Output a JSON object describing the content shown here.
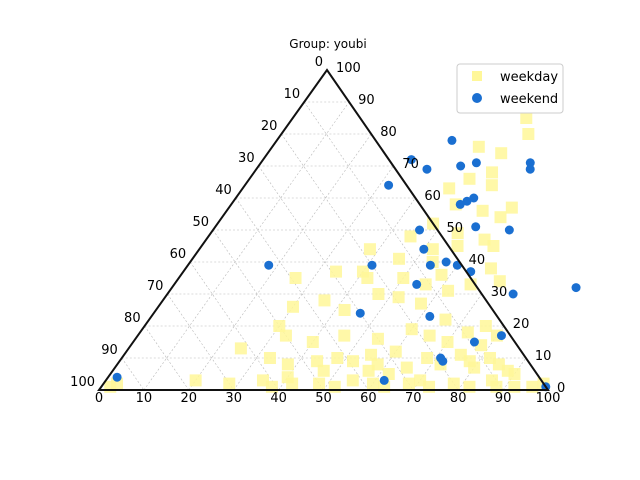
{
  "chart_data": {
    "type": "scatter",
    "subtype": "ternary",
    "title": "Group: youbi",
    "legend_position": "top-right",
    "grid": true,
    "axes": {
      "bottom": {
        "min": 0,
        "max": 100,
        "ticks": [
          "0",
          "10",
          "20",
          "30",
          "40",
          "50",
          "60",
          "70",
          "80",
          "90",
          "100"
        ]
      },
      "right": {
        "min": 0,
        "max": 100,
        "ticks": [
          "0",
          "10",
          "20",
          "30",
          "40",
          "50",
          "60",
          "70",
          "80",
          "90",
          "100"
        ]
      },
      "left": {
        "min": 0,
        "max": 100,
        "ticks": [
          "0",
          "10",
          "20",
          "30",
          "40",
          "50",
          "60",
          "70",
          "80",
          "90",
          "100"
        ]
      }
    },
    "point_coordinate_note": "each point: b = bottom-axis value, r = right-axis value",
    "series": [
      {
        "name": "weekday",
        "marker": "square",
        "color": "#fff799",
        "points": [
          {
            "b": 2,
            "r": 1
          },
          {
            "b": 3,
            "r": 2
          },
          {
            "b": 20,
            "r": 3
          },
          {
            "b": 28,
            "r": 2
          },
          {
            "b": 35,
            "r": 3
          },
          {
            "b": 38,
            "r": 1
          },
          {
            "b": 42,
            "r": 2
          },
          {
            "b": 40,
            "r": 4
          },
          {
            "b": 48,
            "r": 2
          },
          {
            "b": 52,
            "r": 1
          },
          {
            "b": 55,
            "r": 3
          },
          {
            "b": 60,
            "r": 2
          },
          {
            "b": 63,
            "r": 1
          },
          {
            "b": 68,
            "r": 2
          },
          {
            "b": 70,
            "r": 3
          },
          {
            "b": 73,
            "r": 1
          },
          {
            "b": 78,
            "r": 2
          },
          {
            "b": 82,
            "r": 1
          },
          {
            "b": 86,
            "r": 3
          },
          {
            "b": 88,
            "r": 1
          },
          {
            "b": 92,
            "r": 1
          },
          {
            "b": 96,
            "r": 1
          },
          {
            "b": 98,
            "r": 2
          },
          {
            "b": 25,
            "r": 13
          },
          {
            "b": 33,
            "r": 10
          },
          {
            "b": 38,
            "r": 8
          },
          {
            "b": 44,
            "r": 9
          },
          {
            "b": 48,
            "r": 10
          },
          {
            "b": 52,
            "r": 9
          },
          {
            "b": 55,
            "r": 11
          },
          {
            "b": 58,
            "r": 8
          },
          {
            "b": 60,
            "r": 12
          },
          {
            "b": 65,
            "r": 7
          },
          {
            "b": 68,
            "r": 10
          },
          {
            "b": 72,
            "r": 8
          },
          {
            "b": 75,
            "r": 11
          },
          {
            "b": 78,
            "r": 9
          },
          {
            "b": 80,
            "r": 7
          },
          {
            "b": 82,
            "r": 10
          },
          {
            "b": 85,
            "r": 8
          },
          {
            "b": 88,
            "r": 6
          },
          {
            "b": 90,
            "r": 5
          },
          {
            "b": 62,
            "r": 5
          },
          {
            "b": 57,
            "r": 6
          },
          {
            "b": 47,
            "r": 6
          },
          {
            "b": 30,
            "r": 20
          },
          {
            "b": 33,
            "r": 17
          },
          {
            "b": 40,
            "r": 15
          },
          {
            "b": 46,
            "r": 17
          },
          {
            "b": 54,
            "r": 16
          },
          {
            "b": 60,
            "r": 19
          },
          {
            "b": 65,
            "r": 17
          },
          {
            "b": 70,
            "r": 15
          },
          {
            "b": 73,
            "r": 18
          },
          {
            "b": 78,
            "r": 14
          },
          {
            "b": 80,
            "r": 17
          },
          {
            "b": 76,
            "r": 20
          },
          {
            "b": 66,
            "r": 22
          },
          {
            "b": 30,
            "r": 26
          },
          {
            "b": 36,
            "r": 28
          },
          {
            "b": 42,
            "r": 25
          },
          {
            "b": 47,
            "r": 30
          },
          {
            "b": 52,
            "r": 29
          },
          {
            "b": 56,
            "r": 33
          },
          {
            "b": 58,
            "r": 36
          },
          {
            "b": 62,
            "r": 31
          },
          {
            "b": 66,
            "r": 33
          },
          {
            "b": 68,
            "r": 38
          },
          {
            "b": 72,
            "r": 34
          },
          {
            "b": 58,
            "r": 27
          },
          {
            "b": 50,
            "r": 35
          },
          {
            "b": 40,
            "r": 37
          },
          {
            "b": 42,
            "r": 35
          },
          {
            "b": 46,
            "r": 41
          },
          {
            "b": 52,
            "r": 44
          },
          {
            "b": 57,
            "r": 45
          },
          {
            "b": 62,
            "r": 47
          },
          {
            "b": 65,
            "r": 45
          },
          {
            "b": 55,
            "r": 49
          },
          {
            "b": 54,
            "r": 40
          },
          {
            "b": 48,
            "r": 52
          },
          {
            "b": 57,
            "r": 56
          },
          {
            "b": 62,
            "r": 54
          },
          {
            "b": 63,
            "r": 57
          },
          {
            "b": 50,
            "r": 58
          },
          {
            "b": 46,
            "r": 63
          },
          {
            "b": 49,
            "r": 66
          },
          {
            "b": 55,
            "r": 64
          },
          {
            "b": 53,
            "r": 68
          },
          {
            "b": 52,
            "r": 74
          },
          {
            "b": 46,
            "r": 76
          },
          {
            "b": 55,
            "r": 80
          },
          {
            "b": 52,
            "r": 85
          },
          {
            "b": 49,
            "r": 97
          },
          {
            "b": 45,
            "r": 48
          },
          {
            "b": 38,
            "r": 44
          },
          {
            "b": 34,
            "r": 37
          },
          {
            "b": 26,
            "r": 35
          }
        ]
      },
      {
        "name": "weekend",
        "marker": "circle",
        "color": "#1a6fd1",
        "points": [
          {
            "b": 50,
            "r": 100
          },
          {
            "b": 2,
            "r": 4
          },
          {
            "b": 39,
            "r": 78
          },
          {
            "b": 33,
            "r": 72
          },
          {
            "b": 38,
            "r": 69
          },
          {
            "b": 45,
            "r": 70
          },
          {
            "b": 48,
            "r": 71
          },
          {
            "b": 60,
            "r": 71
          },
          {
            "b": 61,
            "r": 69
          },
          {
            "b": 32,
            "r": 64
          },
          {
            "b": 53,
            "r": 60
          },
          {
            "b": 51,
            "r": 58
          },
          {
            "b": 52,
            "r": 59
          },
          {
            "b": 58,
            "r": 51
          },
          {
            "b": 46,
            "r": 50
          },
          {
            "b": 66,
            "r": 50
          },
          {
            "b": 50,
            "r": 44
          },
          {
            "b": 57,
            "r": 40
          },
          {
            "b": 60,
            "r": 39
          },
          {
            "b": 54,
            "r": 39
          },
          {
            "b": 64,
            "r": 37
          },
          {
            "b": 54,
            "r": 33
          },
          {
            "b": 77,
            "r": 30
          },
          {
            "b": 90,
            "r": 32
          },
          {
            "b": 18,
            "r": 39
          },
          {
            "b": 41,
            "r": 39
          },
          {
            "b": 62,
            "r": 23
          },
          {
            "b": 46,
            "r": 24
          },
          {
            "b": 81,
            "r": 17
          },
          {
            "b": 76,
            "r": 15
          },
          {
            "b": 71,
            "r": 10
          },
          {
            "b": 72,
            "r": 9
          },
          {
            "b": 62,
            "r": 3
          },
          {
            "b": 99,
            "r": 1
          }
        ]
      }
    ]
  }
}
